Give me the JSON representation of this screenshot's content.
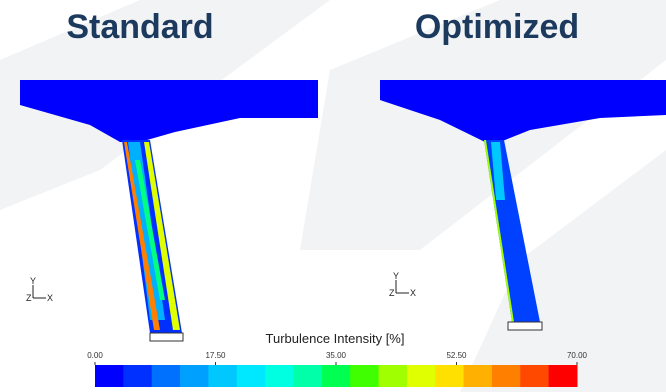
{
  "panels": [
    {
      "title": "Standard",
      "axes": {
        "y": "Y",
        "z": "Z",
        "x": "X"
      }
    },
    {
      "title": "Optimized",
      "axes": {
        "y": "Y",
        "z": "Z",
        "x": "X"
      }
    }
  ],
  "colorbar": {
    "title": "Turbulence Intensity [%]",
    "range": [
      0,
      70
    ],
    "ticks": [
      {
        "value": 0,
        "label": "0.00"
      },
      {
        "value": 17.5,
        "label": "17.50"
      },
      {
        "value": 35,
        "label": "35.00"
      },
      {
        "value": 52.5,
        "label": "52.50"
      },
      {
        "value": 70,
        "label": "70.00"
      }
    ],
    "colors": [
      "#0000ff",
      "#0030ff",
      "#0070ff",
      "#00a0ff",
      "#00c8ff",
      "#00e8ff",
      "#00ffe0",
      "#00ffa8",
      "#00ff50",
      "#40ff00",
      "#a0ff00",
      "#e0ff00",
      "#ffe000",
      "#ffb000",
      "#ff8000",
      "#ff4800",
      "#ff0000"
    ]
  }
}
